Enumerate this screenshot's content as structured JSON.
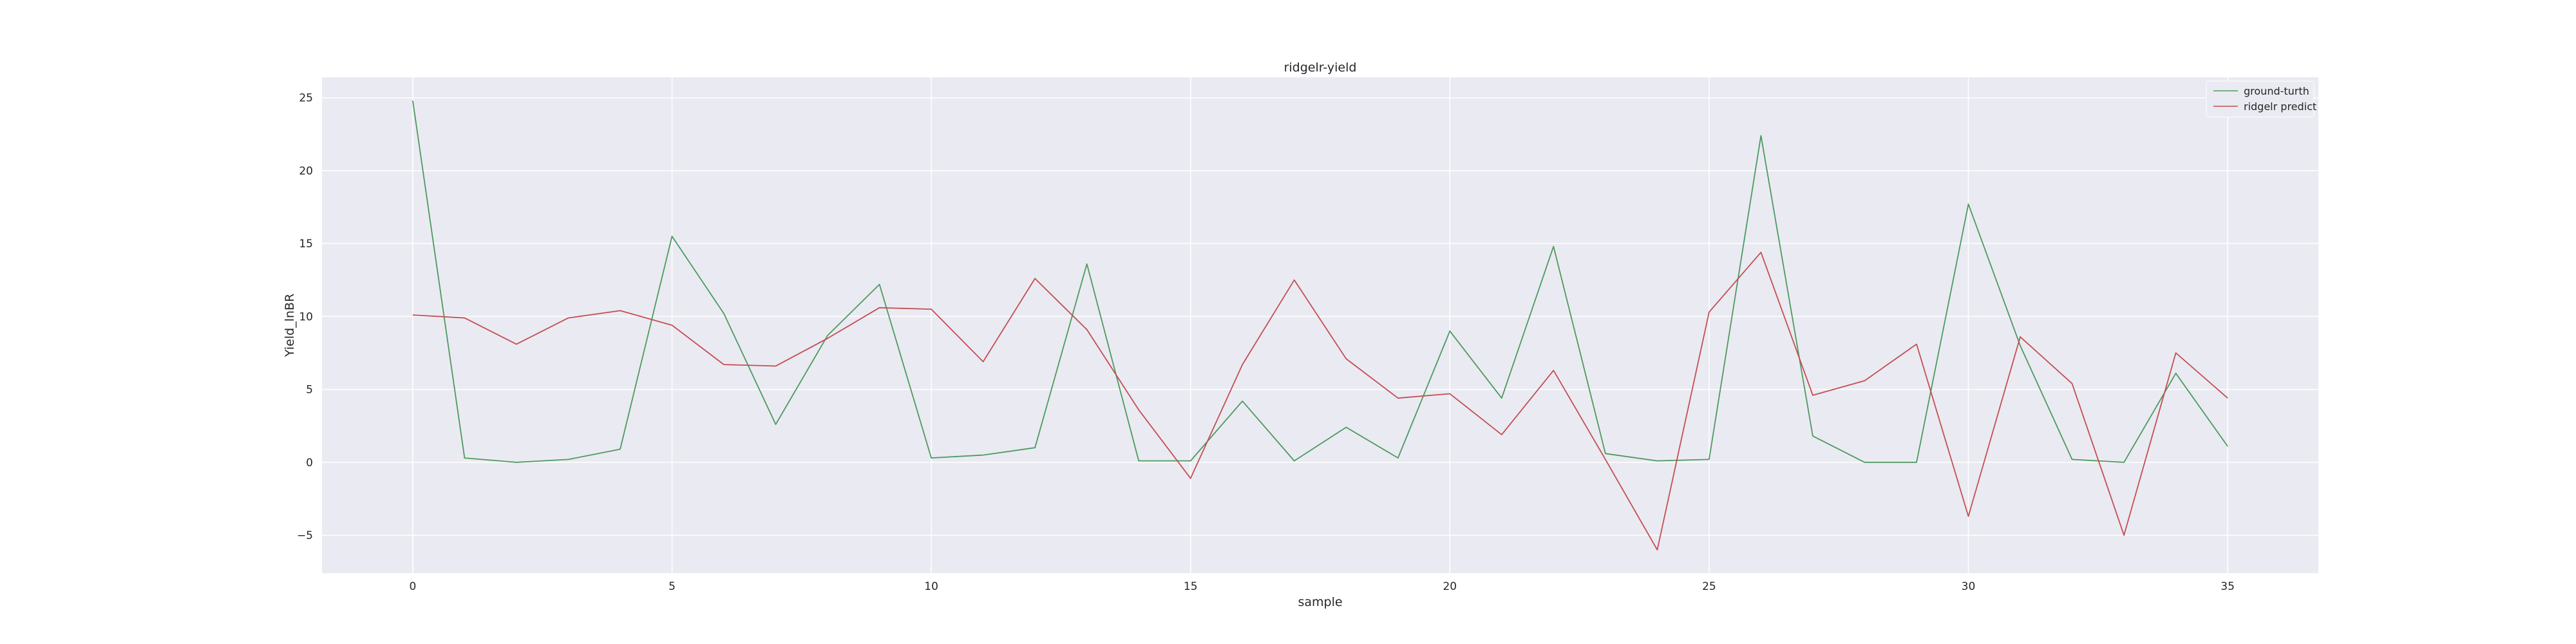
{
  "chart_data": {
    "type": "line",
    "title": "ridgelr-yield",
    "xlabel": "sample",
    "ylabel": "Yield_lnBR",
    "xlim": [
      -1.75,
      36.75
    ],
    "ylim": [
      -7.6,
      26.4
    ],
    "xticks": [
      0,
      5,
      10,
      15,
      20,
      25,
      30,
      35
    ],
    "yticks": [
      -5,
      0,
      5,
      10,
      15,
      20,
      25
    ],
    "grid": true,
    "legend_position": "top-right",
    "x": [
      0,
      1,
      2,
      3,
      4,
      5,
      6,
      7,
      8,
      9,
      10,
      11,
      12,
      13,
      14,
      15,
      16,
      17,
      18,
      19,
      20,
      21,
      22,
      23,
      24,
      25,
      26,
      27,
      28,
      29,
      30,
      31,
      32,
      33,
      34,
      35
    ],
    "series": [
      {
        "name": "ground-turth",
        "color": "#4c9a5e",
        "values": [
          24.8,
          0.3,
          0.0,
          0.2,
          0.9,
          15.5,
          10.2,
          2.6,
          8.7,
          12.2,
          0.3,
          0.5,
          1.0,
          13.6,
          0.1,
          0.1,
          4.2,
          0.1,
          2.4,
          0.3,
          9.0,
          4.4,
          14.8,
          0.6,
          0.1,
          0.2,
          22.4,
          1.8,
          0.0,
          0.0,
          17.7,
          8.0,
          0.2,
          0.0,
          6.1,
          1.1
        ]
      },
      {
        "name": "ridgelr predict",
        "color": "#c44e52",
        "values": [
          10.1,
          9.9,
          8.1,
          9.9,
          10.4,
          9.4,
          6.7,
          6.6,
          8.5,
          10.6,
          10.5,
          6.9,
          12.6,
          9.1,
          3.6,
          -1.1,
          6.7,
          12.5,
          7.1,
          4.4,
          4.7,
          1.9,
          6.3,
          0.2,
          -6.0,
          10.3,
          14.4,
          4.6,
          5.6,
          8.1,
          -3.7,
          8.6,
          5.4,
          -5.0,
          7.5,
          4.4
        ]
      }
    ]
  }
}
